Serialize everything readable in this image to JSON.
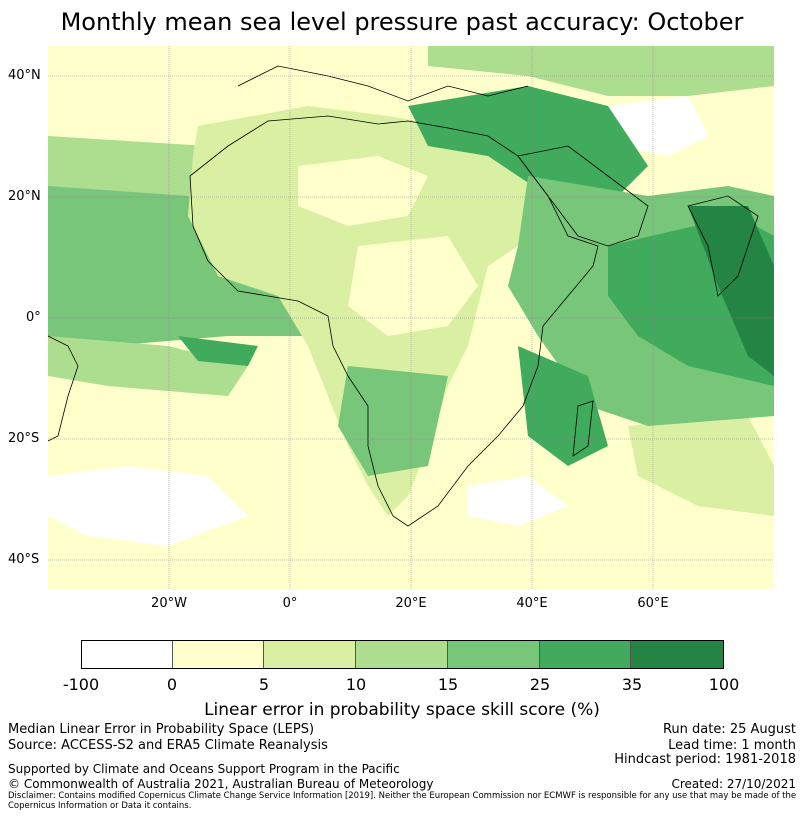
{
  "title": "Monthly mean sea level pressure past accuracy: October",
  "map": {
    "lat_labels": [
      "40°N",
      "20°N",
      "0°",
      "20°S",
      "40°S"
    ],
    "lon_labels": [
      "20°W",
      "0°",
      "20°E",
      "40°E",
      "60°E"
    ],
    "colors": {
      "ocean_light": "#f7fcb9",
      "band1": "#d9f0a3",
      "band2": "#addd8e",
      "band3": "#78c679",
      "band4": "#41ab5d",
      "band5": "#238443",
      "coast": "#000000"
    }
  },
  "colorbar": {
    "ticks": [
      "-100",
      "0",
      "5",
      "10",
      "15",
      "25",
      "35",
      "100"
    ],
    "colors": [
      "#ffffff",
      "#ffffcc",
      "#d9f0a3",
      "#addd8e",
      "#78c679",
      "#41ab5d",
      "#238443"
    ],
    "label": "Linear error in probability space skill score (%)"
  },
  "footer": {
    "left_line1": "Median Linear Error in Probability Space (LEPS)",
    "left_line2": "Source: ACCESS-S2 and ERA5 Climate Reanalysis",
    "run_date": "Run date: 25 August",
    "lead_time": "Lead time: 1 month",
    "hindcast": "Hindcast period: 1981-2018",
    "support": "Supported by Climate and Oceans Support Program in the Pacific",
    "copyright": "© Commonwealth of Australia 2021, Australian Bureau of Meteorology",
    "created": "Created: 27/10/2021",
    "disclaimer": "Disclaimer: Contains modified Copernicus Climate Change Service Information [2019]. Neither the European Commission nor ECMWF is responsible for any use that may be made of the Copernicus Information or Data it contains."
  }
}
